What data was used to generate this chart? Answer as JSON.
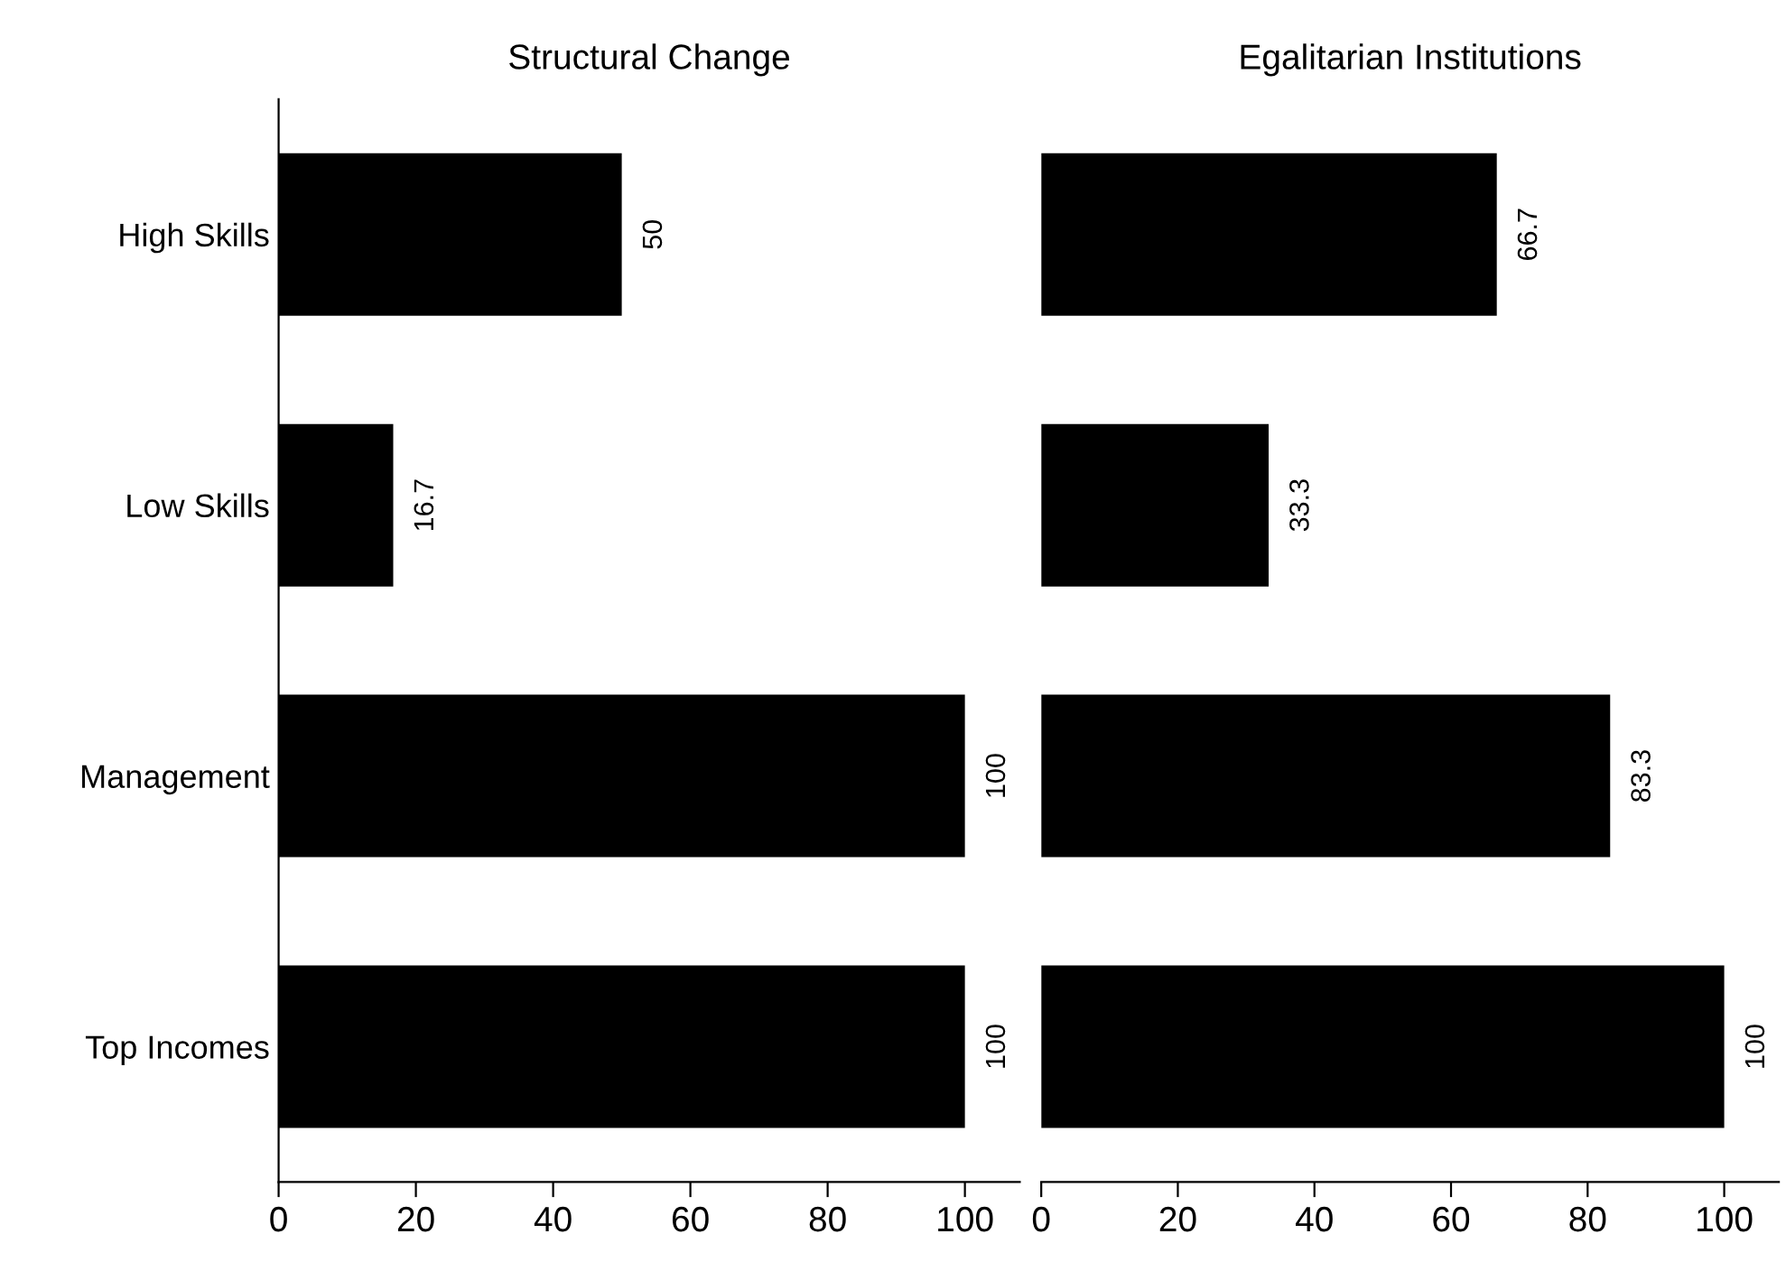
{
  "chart_data": [
    {
      "type": "bar",
      "orientation": "horizontal",
      "title": "Structural Change",
      "categories": [
        "High Skills",
        "Low Skills",
        "Management",
        "Top Incomes"
      ],
      "values": [
        50,
        16.7,
        100,
        100
      ],
      "color": "#000000",
      "xlim": [
        0,
        108
      ],
      "xticks": [
        0,
        20,
        40,
        60,
        80,
        100
      ],
      "data_labels": true,
      "grid": false,
      "legend": false
    },
    {
      "type": "bar",
      "orientation": "horizontal",
      "title": "Egalitarian Institutions",
      "categories": [
        null,
        null,
        null,
        null
      ],
      "values": [
        66.7,
        33.3,
        83.3,
        100
      ],
      "color": "#000000",
      "xlim": [
        0,
        108
      ],
      "xticks": [
        0,
        20,
        40,
        60,
        80,
        100
      ],
      "data_labels": true,
      "grid": false,
      "legend": false,
      "tick_labels": "x"
    }
  ]
}
